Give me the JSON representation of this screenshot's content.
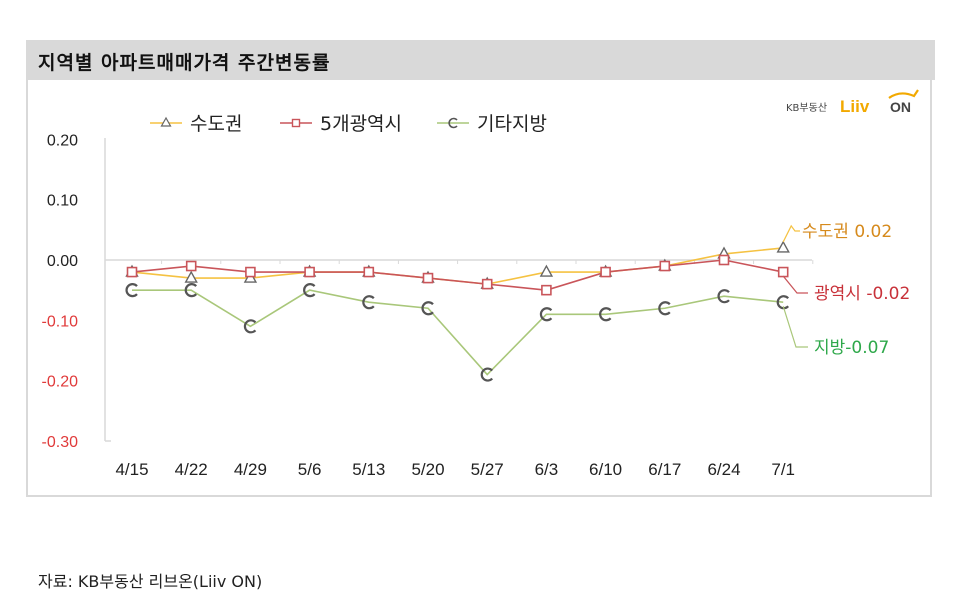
{
  "title": "지역별 아파트매매가격 주간변동률",
  "source": "자료: KB부동산 리브온(Liiv ON)",
  "logo": {
    "prefix": "KB부동산",
    "brand": "Liiv",
    "suffix": "ON"
  },
  "chart_data": {
    "type": "line",
    "title": "지역별 아파트매매가격 주간변동률",
    "xlabel": "",
    "ylabel": "",
    "ylim": [
      -0.3,
      0.2
    ],
    "yticks": [
      "0.20",
      "0.10",
      "0.00",
      "-0.10",
      "-0.20",
      "-0.30"
    ],
    "grid": false,
    "legend_position": "top",
    "categories": [
      "4/15",
      "4/22",
      "4/29",
      "5/6",
      "5/13",
      "5/20",
      "5/27",
      "6/3",
      "6/10",
      "6/17",
      "6/24",
      "7/1"
    ],
    "series": [
      {
        "name": "수도권",
        "color": "#f5c242",
        "marker": "triangle",
        "values": [
          -0.02,
          -0.03,
          -0.03,
          -0.02,
          -0.02,
          -0.03,
          -0.04,
          -0.02,
          -0.02,
          -0.01,
          0.01,
          0.02
        ]
      },
      {
        "name": "5개광역시",
        "color": "#c9555a",
        "marker": "square",
        "values": [
          -0.02,
          -0.01,
          -0.02,
          -0.02,
          -0.02,
          -0.03,
          -0.04,
          -0.05,
          -0.02,
          -0.01,
          0.0,
          -0.02
        ]
      },
      {
        "name": "기타지방",
        "color": "#a9c77a",
        "marker": "circle",
        "values": [
          -0.05,
          -0.05,
          -0.11,
          -0.05,
          -0.07,
          -0.08,
          -0.19,
          -0.09,
          -0.09,
          -0.08,
          -0.06,
          -0.07
        ]
      }
    ],
    "annotations": [
      {
        "text": "수도권 0.02",
        "color": "#d68a1c"
      },
      {
        "text": "광역시 -0.02",
        "color": "#c8323a"
      },
      {
        "text": "지방-0.07",
        "color": "#2ea84a"
      }
    ]
  }
}
